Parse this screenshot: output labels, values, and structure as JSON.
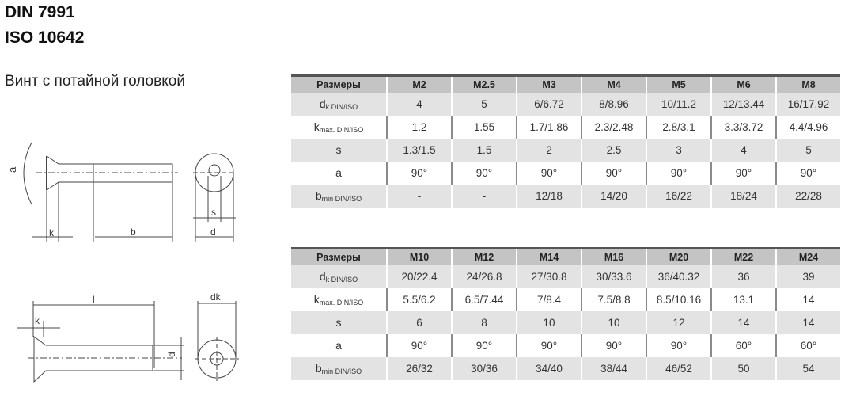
{
  "header": {
    "title1": "DIN 7991",
    "title2": "ISO 10642",
    "subtitle": "Винт с потайной головкой"
  },
  "diagram": {
    "top": {
      "a": "a",
      "k": "k",
      "b": "b",
      "s": "s",
      "dk": "d",
      "dk_sub": "k"
    },
    "bottom": {
      "l": "l",
      "k": "k",
      "d": "d",
      "dk": "dk"
    }
  },
  "tables": [
    {
      "header": [
        "Размеры",
        "M2",
        "M2.5",
        "M3",
        "M4",
        "M5",
        "M6",
        "M8"
      ],
      "rows": [
        {
          "label": "d",
          "sub": "k DIN/ISO",
          "values": [
            "4",
            "5",
            "6/6.72",
            "8/8.96",
            "10/11.2",
            "12/13.44",
            "16/17.92"
          ]
        },
        {
          "label": "k",
          "sub": "max. DIN/ISO",
          "values": [
            "1.2",
            "1.55",
            "1.7/1.86",
            "2.3/2.48",
            "2.8/3.1",
            "3.3/3.72",
            "4.4/4.96"
          ]
        },
        {
          "label": "s",
          "sub": "",
          "values": [
            "1.3/1.5",
            "1.5",
            "2",
            "2.5",
            "3",
            "4",
            "5"
          ]
        },
        {
          "label": "a",
          "sub": "",
          "values": [
            "90°",
            "90°",
            "90°",
            "90°",
            "90°",
            "90°",
            "90°"
          ]
        },
        {
          "label": "b",
          "sub": "min DIN/ISO",
          "values": [
            "-",
            "-",
            "12/18",
            "14/20",
            "16/22",
            "18/24",
            "22/28"
          ]
        }
      ]
    },
    {
      "header": [
        "Размеры",
        "M10",
        "M12",
        "M14",
        "M16",
        "M20",
        "M22",
        "M24"
      ],
      "rows": [
        {
          "label": "d",
          "sub": "k DIN/ISO",
          "values": [
            "20/22.4",
            "24/26.8",
            "27/30.8",
            "30/33.6",
            "36/40.32",
            "36",
            "39"
          ]
        },
        {
          "label": "k",
          "sub": "max. DIN/ISO",
          "values": [
            "5.5/6.2",
            "6.5/7.44",
            "7/8.4",
            "7.5/8.8",
            "8.5/10.16",
            "13.1",
            "14"
          ]
        },
        {
          "label": "s",
          "sub": "",
          "values": [
            "6",
            "8",
            "10",
            "10",
            "12",
            "14",
            "14"
          ]
        },
        {
          "label": "a",
          "sub": "",
          "values": [
            "90°",
            "90°",
            "90°",
            "90°",
            "90°",
            "60°",
            "60°"
          ]
        },
        {
          "label": "b",
          "sub": "min DIN/ISO",
          "values": [
            "26/32",
            "30/36",
            "34/40",
            "38/44",
            "46/52",
            "50",
            "54"
          ]
        }
      ]
    }
  ]
}
